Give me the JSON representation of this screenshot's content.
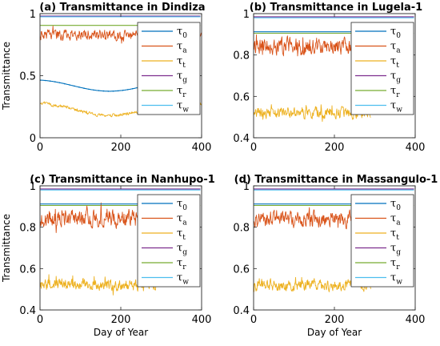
{
  "colors": {
    "tau0": "#0072bd",
    "taua": "#d95319",
    "taut": "#edb120",
    "taug": "#7e2f8e",
    "taur": "#77ac30",
    "tauw": "#4dbeee"
  },
  "chart_data": [
    {
      "type": "line",
      "title": "(a) Transmittance in Dindiza",
      "xlabel": "",
      "ylabel": "Transmittance",
      "xlim": [
        0,
        400
      ],
      "ylim": [
        0,
        1
      ],
      "xticks": [
        "0",
        "200",
        "400"
      ],
      "yticks": [
        "0",
        "0.5",
        "1"
      ],
      "legend": {
        "placement": "right-inside",
        "entries": [
          {
            "sym": "τ",
            "sub": "0"
          },
          {
            "sym": "τ",
            "sub": "a"
          },
          {
            "sym": "τ",
            "sub": "t"
          },
          {
            "sym": "τ",
            "sub": "g"
          },
          {
            "sym": "τ",
            "sub": "r"
          },
          {
            "sym": "τ",
            "sub": "w"
          }
        ]
      },
      "series_summary": {
        "tau0": {
          "range": [
            1,
            365
          ],
          "shape": "cosine",
          "mean": 0.42,
          "amp": 0.045,
          "min_day": 172
        },
        "taua": {
          "range": [
            1,
            400
          ],
          "shape": "noisy",
          "mean": 0.83,
          "amp": 0.06,
          "min": 0.68,
          "max": 0.9
        },
        "taut": {
          "range": [
            1,
            400
          ],
          "shape": "cosine-noisy",
          "mean": 0.23,
          "amp": 0.05,
          "noise": 0.02,
          "min_day": 172
        },
        "taug": {
          "range": [
            1,
            400
          ],
          "shape": "flat",
          "value": 0.98
        },
        "taur": {
          "range": [
            1,
            400
          ],
          "shape": "flat",
          "value": 0.905
        },
        "tauw": {
          "range": [
            1,
            400
          ],
          "shape": "flat",
          "value": 0.975
        }
      }
    },
    {
      "type": "line",
      "title": "(b) Transmittance in Lugela-1",
      "xlabel": "",
      "ylabel": "",
      "xlim": [
        0,
        400
      ],
      "ylim": [
        0.4,
        1
      ],
      "xticks": [
        "0",
        "200",
        "400"
      ],
      "yticks": [
        "0.4",
        "0.6",
        "0.8",
        "1"
      ],
      "legend": {
        "placement": "right-inside",
        "entries": [
          {
            "sym": "τ",
            "sub": "0"
          },
          {
            "sym": "τ",
            "sub": "a"
          },
          {
            "sym": "τ",
            "sub": "t"
          },
          {
            "sym": "τ",
            "sub": "g"
          },
          {
            "sym": "τ",
            "sub": "r"
          },
          {
            "sym": "τ",
            "sub": "w"
          }
        ]
      },
      "series_summary": {
        "tau0": {
          "range": [
            1,
            365
          ],
          "shape": "flat",
          "value": 0.912
        },
        "taua": {
          "range": [
            1,
            290
          ],
          "shape": "noisy",
          "mean": 0.84,
          "amp": 0.06,
          "min": 0.62,
          "max": 0.95
        },
        "taut": {
          "range": [
            1,
            290
          ],
          "shape": "noisy",
          "mean": 0.52,
          "amp": 0.04,
          "min": 0.41,
          "max": 0.6
        },
        "taug": {
          "range": [
            1,
            400
          ],
          "shape": "flat",
          "value": 0.985
        },
        "taur": {
          "range": [
            1,
            400
          ],
          "shape": "flat",
          "value": 0.905
        },
        "tauw": {
          "range": [
            1,
            400
          ],
          "shape": "flat",
          "value": 0.98
        }
      }
    },
    {
      "type": "line",
      "title": "(c) Transmittance in Nanhupo-1",
      "xlabel": "Day of Year",
      "ylabel": "Transmittance",
      "xlim": [
        0,
        400
      ],
      "ylim": [
        0.4,
        1
      ],
      "xticks": [
        "0",
        "200",
        "400"
      ],
      "yticks": [
        "0.4",
        "0.6",
        "0.8",
        "1"
      ],
      "legend": {
        "placement": "right-inside",
        "entries": [
          {
            "sym": "τ",
            "sub": "0"
          },
          {
            "sym": "τ",
            "sub": "a"
          },
          {
            "sym": "τ",
            "sub": "t"
          },
          {
            "sym": "τ",
            "sub": "g"
          },
          {
            "sym": "τ",
            "sub": "r"
          },
          {
            "sym": "τ",
            "sub": "w"
          }
        ]
      },
      "series_summary": {
        "tau0": {
          "range": [
            1,
            365
          ],
          "shape": "flat",
          "value": 0.912
        },
        "taua": {
          "range": [
            1,
            290
          ],
          "shape": "noisy",
          "mean": 0.84,
          "amp": 0.06,
          "min": 0.62,
          "max": 0.95
        },
        "taut": {
          "range": [
            1,
            290
          ],
          "shape": "noisy",
          "mean": 0.52,
          "amp": 0.04,
          "min": 0.41,
          "max": 0.6
        },
        "taug": {
          "range": [
            1,
            400
          ],
          "shape": "flat",
          "value": 0.985
        },
        "taur": {
          "range": [
            1,
            400
          ],
          "shape": "flat",
          "value": 0.905
        },
        "tauw": {
          "range": [
            1,
            400
          ],
          "shape": "flat",
          "value": 0.98
        }
      }
    },
    {
      "type": "line",
      "title": "(d) Transmittance in Massangulo-1",
      "xlabel": "Day of Year",
      "ylabel": "",
      "xlim": [
        0,
        400
      ],
      "ylim": [
        0.4,
        1
      ],
      "xticks": [
        "0",
        "200",
        "400"
      ],
      "yticks": [
        "0.4",
        "0.6",
        "0.8",
        "1"
      ],
      "legend": {
        "placement": "right-inside",
        "entries": [
          {
            "sym": "τ",
            "sub": "0"
          },
          {
            "sym": "τ",
            "sub": "a"
          },
          {
            "sym": "τ",
            "sub": "t"
          },
          {
            "sym": "τ",
            "sub": "g"
          },
          {
            "sym": "τ",
            "sub": "r"
          },
          {
            "sym": "τ",
            "sub": "w"
          }
        ]
      },
      "series_summary": {
        "tau0": {
          "range": [
            1,
            365
          ],
          "shape": "flat",
          "value": 0.912
        },
        "taua": {
          "range": [
            1,
            290
          ],
          "shape": "noisy",
          "mean": 0.84,
          "amp": 0.06,
          "min": 0.62,
          "max": 0.95
        },
        "taut": {
          "range": [
            1,
            290
          ],
          "shape": "noisy",
          "mean": 0.52,
          "amp": 0.04,
          "min": 0.41,
          "max": 0.6
        },
        "taug": {
          "range": [
            1,
            400
          ],
          "shape": "flat",
          "value": 0.985
        },
        "taur": {
          "range": [
            1,
            400
          ],
          "shape": "flat",
          "value": 0.905
        },
        "tauw": {
          "range": [
            1,
            400
          ],
          "shape": "flat",
          "value": 0.98
        }
      }
    }
  ]
}
